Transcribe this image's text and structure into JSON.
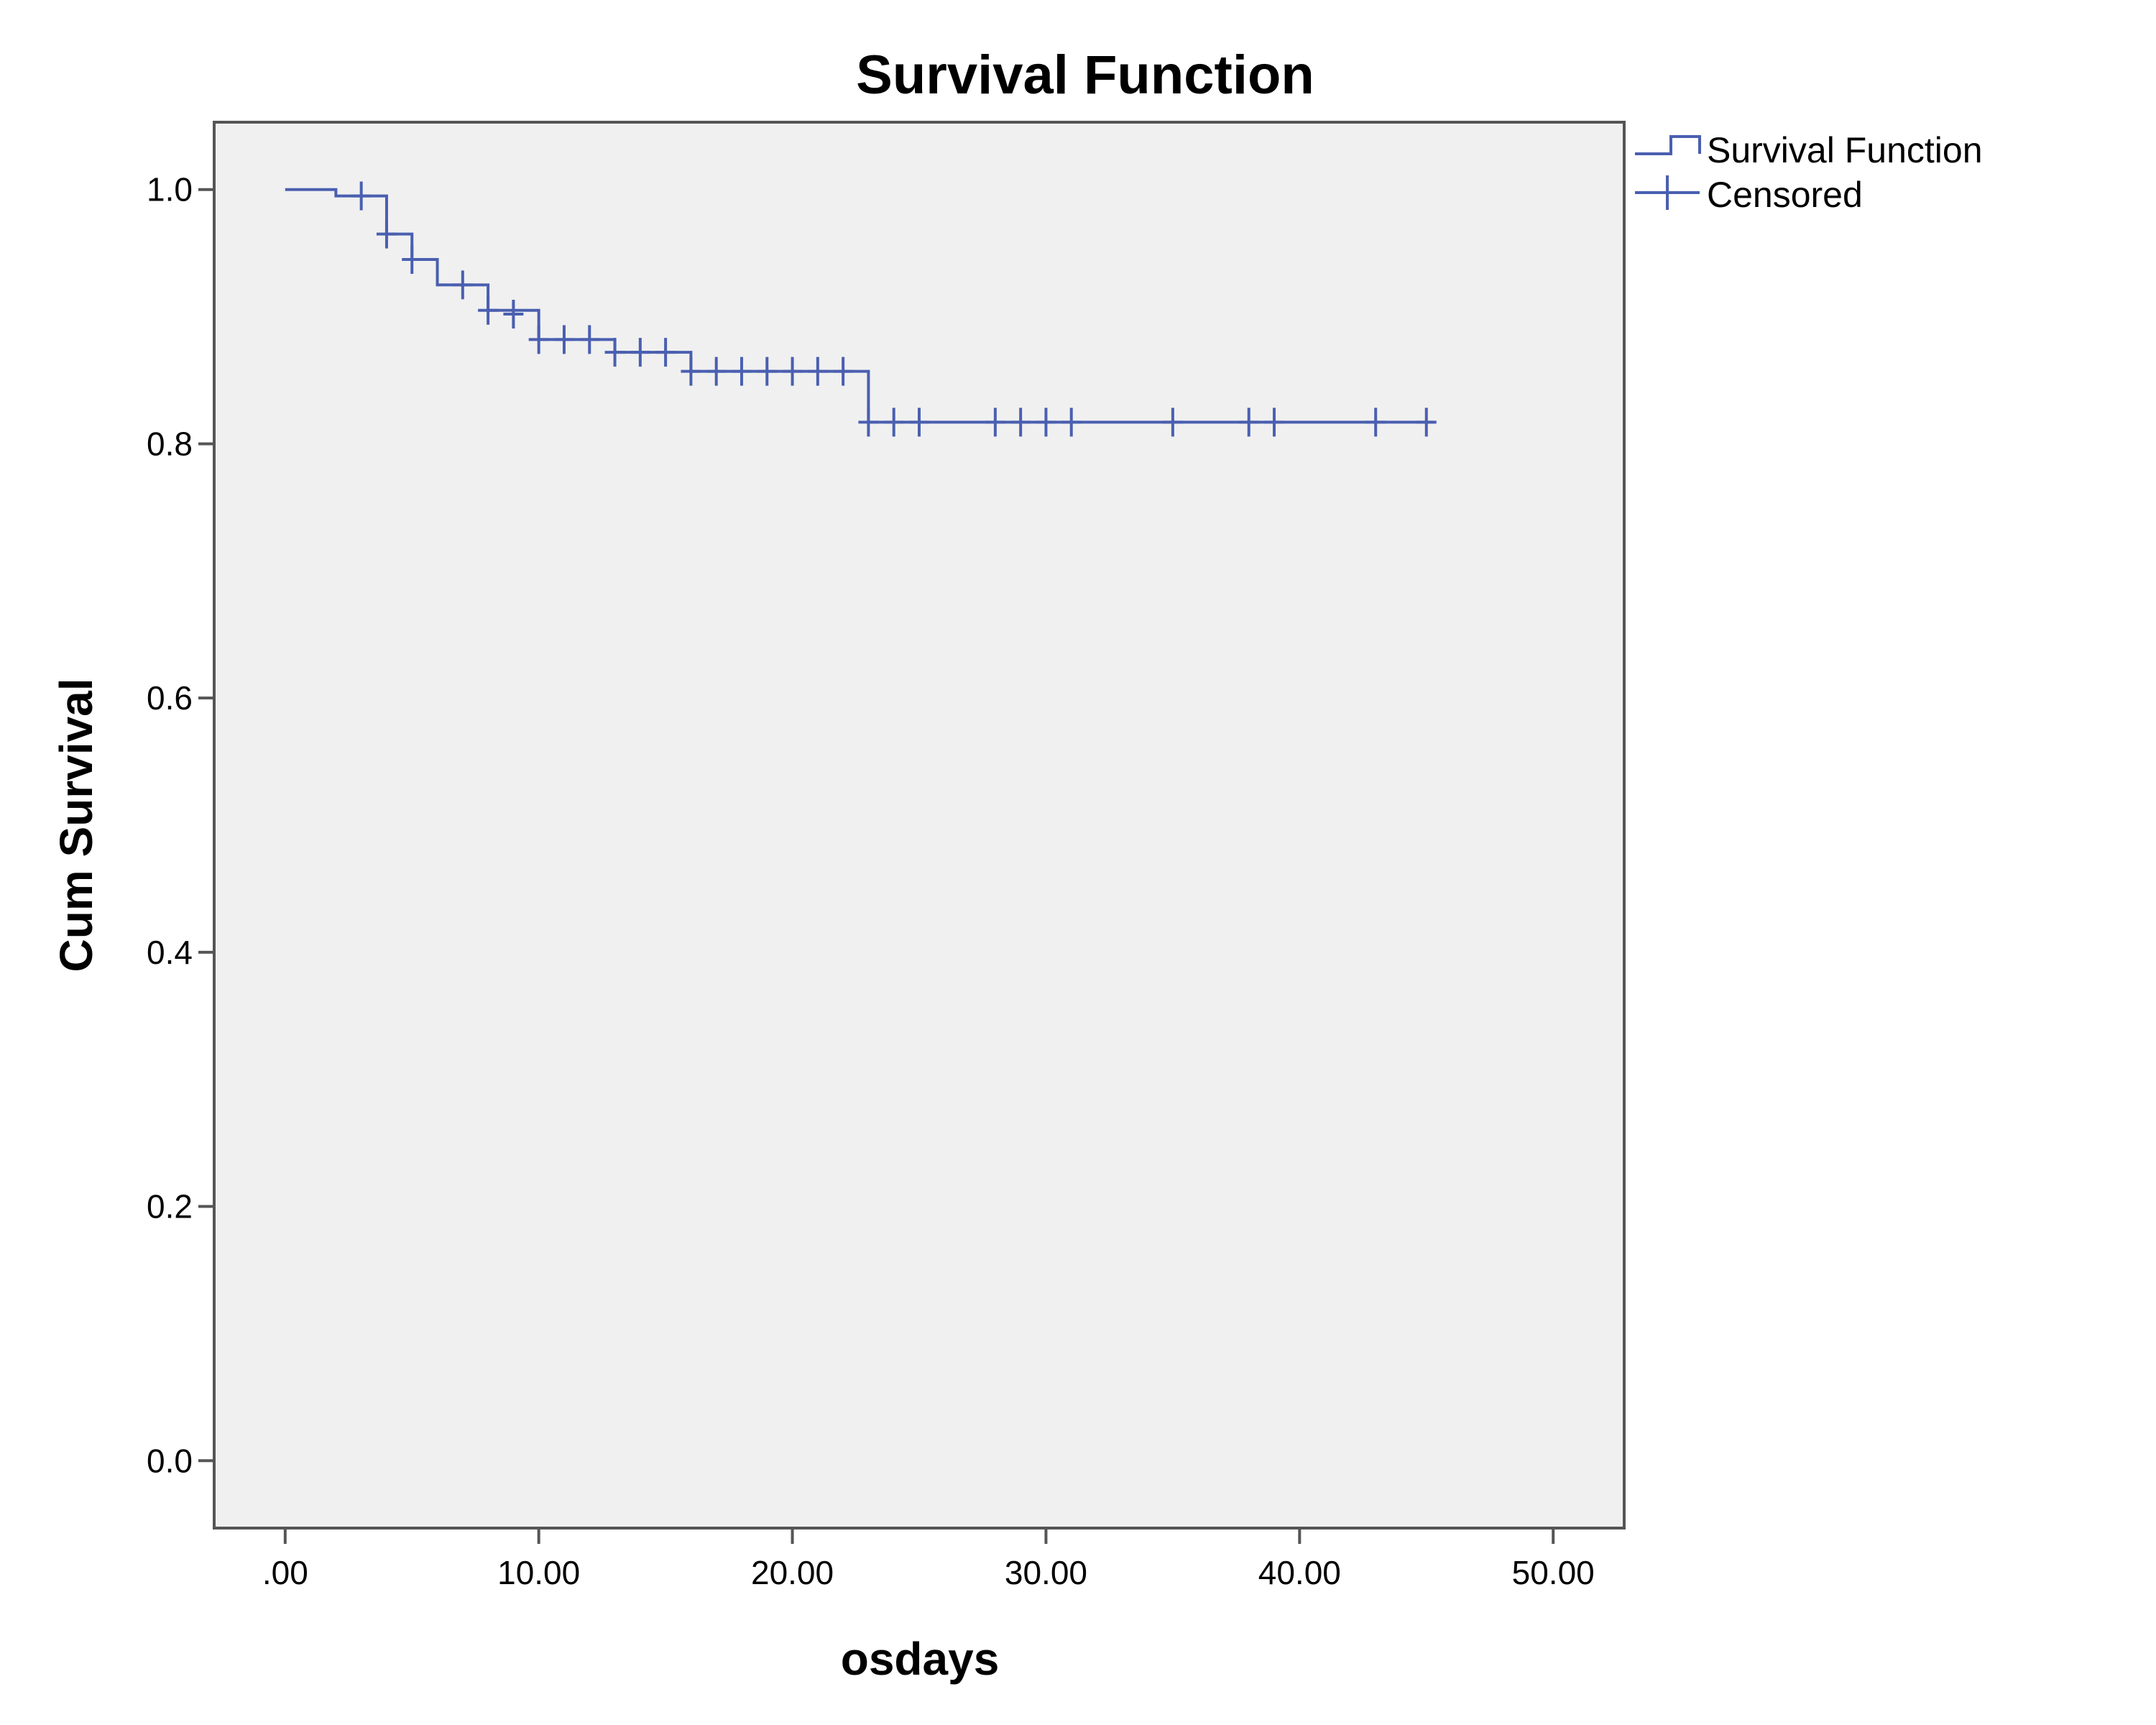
{
  "chart_data": {
    "type": "line",
    "title": "Survival Function",
    "xlabel": "osdays",
    "ylabel": "Cum Survival",
    "xlim": [
      -2.8,
      52.8
    ],
    "ylim": [
      -0.053,
      1.053
    ],
    "xticks": [
      0,
      10,
      20,
      30,
      40,
      50
    ],
    "xtick_labels": [
      ".00",
      "10.00",
      "20.00",
      "30.00",
      "40.00",
      "50.00"
    ],
    "yticks": [
      0.0,
      0.2,
      0.4,
      0.6,
      0.8,
      1.0
    ],
    "ytick_labels": [
      "0.0",
      "0.2",
      "0.4",
      "0.6",
      "0.8",
      "1.0"
    ],
    "grid": false,
    "legend": "right",
    "colors": {
      "line": "#4a5fb0",
      "plot_bg": "#f0f0f0",
      "frame": "#555555"
    },
    "series": [
      {
        "name": "Survival Function",
        "step_x": [
          0,
          2,
          4,
          5,
          6,
          8,
          10,
          13,
          16,
          23,
          45.3
        ],
        "step_y": [
          1.0,
          0.995,
          0.965,
          0.945,
          0.925,
          0.905,
          0.882,
          0.872,
          0.857,
          0.817,
          0.817
        ]
      },
      {
        "name": "Censored",
        "x": [
          3,
          4,
          5,
          7,
          8,
          9,
          10,
          11,
          12,
          13,
          14,
          15,
          16,
          17,
          18,
          19,
          20,
          21,
          22,
          23,
          24,
          25,
          28,
          29,
          30,
          31,
          35,
          38,
          39,
          43,
          45
        ],
        "y": [
          0.995,
          0.965,
          0.945,
          0.925,
          0.905,
          0.902,
          0.882,
          0.882,
          0.882,
          0.872,
          0.872,
          0.872,
          0.857,
          0.857,
          0.857,
          0.857,
          0.857,
          0.857,
          0.857,
          0.817,
          0.817,
          0.817,
          0.817,
          0.817,
          0.817,
          0.817,
          0.817,
          0.817,
          0.817,
          0.817,
          0.817
        ]
      }
    ]
  }
}
